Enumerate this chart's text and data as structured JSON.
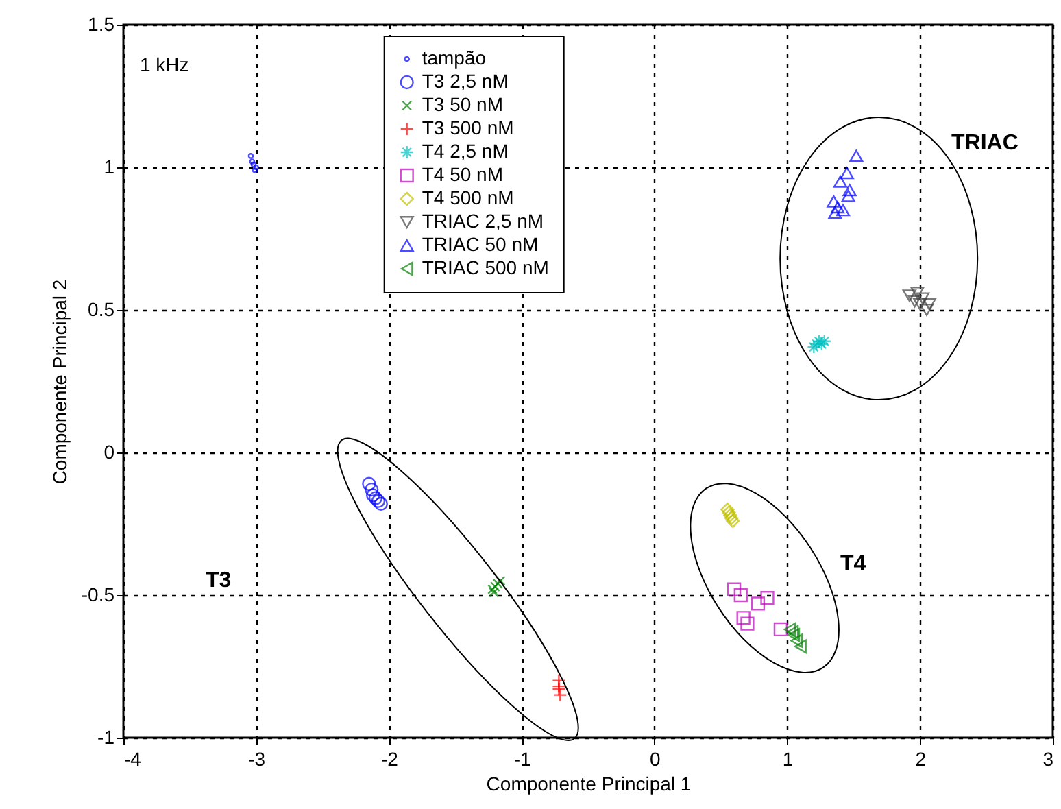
{
  "chart_data": {
    "type": "scatter",
    "xlabel": "Componente Principal 1",
    "ylabel": "Componente Principal 2",
    "xlim": [
      -4,
      3
    ],
    "xticks": [
      -4,
      -3,
      -2,
      -1,
      0,
      1,
      2,
      3
    ],
    "ylim": [
      -1,
      1.5
    ],
    "yticks": [
      -1,
      -0.5,
      0,
      0.5,
      1,
      1.5
    ],
    "grid": true,
    "legend": "top",
    "annotations": [
      "1 kHz",
      "T3",
      "T4",
      "TRIAC"
    ],
    "series": [
      {
        "name": "tampão",
        "color": "#0000ff",
        "marker": "point",
        "x": [
          -3.04,
          -3.03,
          -3.02,
          -3.01,
          -3.0
        ],
        "values": [
          1.04,
          1.02,
          1.01,
          0.99,
          1.0
        ]
      },
      {
        "name": "T3 2,5 nM",
        "color": "#0000ff",
        "marker": "circle",
        "x": [
          -2.15,
          -2.13,
          -2.12,
          -2.1,
          -2.06,
          -2.08
        ],
        "values": [
          -0.11,
          -0.13,
          -0.15,
          -0.16,
          -0.18,
          -0.17
        ]
      },
      {
        "name": "T3 50 nM",
        "color": "#008000",
        "marker": "x",
        "x": [
          -1.22,
          -1.2,
          -1.18,
          -1.16,
          -1.21
        ],
        "values": [
          -0.48,
          -0.47,
          -0.46,
          -0.45,
          -0.49
        ]
      },
      {
        "name": "T3 500 nM",
        "color": "#ff0000",
        "marker": "plus",
        "x": [
          -0.72,
          -0.72,
          -0.71,
          -0.72
        ],
        "values": [
          -0.8,
          -0.83,
          -0.85,
          -0.82
        ]
      },
      {
        "name": "T4 2,5 nM",
        "color": "#00bfbf",
        "marker": "cross",
        "x": [
          1.2,
          1.22,
          1.24,
          1.26,
          1.28
        ],
        "values": [
          0.37,
          0.38,
          0.39,
          0.38,
          0.39
        ]
      },
      {
        "name": "T4 50 nM",
        "color": "#bf00bf",
        "marker": "square",
        "x": [
          0.6,
          0.65,
          0.85,
          0.78,
          0.67,
          0.7,
          0.95
        ],
        "values": [
          -0.48,
          -0.5,
          -0.51,
          -0.53,
          -0.58,
          -0.6,
          -0.62
        ]
      },
      {
        "name": "T4 500 nM",
        "color": "#bfbf00",
        "marker": "diamond",
        "x": [
          0.55,
          0.57,
          0.59,
          0.56,
          0.58
        ],
        "values": [
          -0.2,
          -0.22,
          -0.24,
          -0.21,
          -0.23
        ]
      },
      {
        "name": "TRIAC 2,5 nM",
        "color": "#404040",
        "marker": "triangle-down",
        "x": [
          1.92,
          1.98,
          2.02,
          2.0,
          2.05,
          2.07,
          1.96
        ],
        "values": [
          0.55,
          0.56,
          0.54,
          0.52,
          0.5,
          0.52,
          0.53
        ]
      },
      {
        "name": "TRIAC 50 nM",
        "color": "#0000ff",
        "marker": "triangle",
        "x": [
          1.52,
          1.45,
          1.4,
          1.47,
          1.35,
          1.38,
          1.42,
          1.36,
          1.46
        ],
        "values": [
          1.04,
          0.98,
          0.95,
          0.92,
          0.88,
          0.86,
          0.85,
          0.84,
          0.9
        ]
      },
      {
        "name": "TRIAC 500 nM",
        "color": "#008000",
        "marker": "triangle-left",
        "x": [
          1.02,
          1.05,
          1.07,
          1.1,
          1.04
        ],
        "values": [
          -0.62,
          -0.64,
          -0.66,
          -0.68,
          -0.63
        ]
      }
    ]
  }
}
